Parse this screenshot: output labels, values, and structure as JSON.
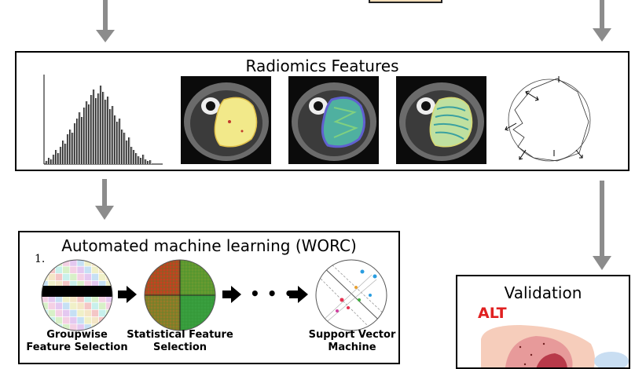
{
  "radiomics": {
    "title": "Radiomics Features"
  },
  "automl": {
    "title": "Automated machine learning (WORC)",
    "step_number": "1.",
    "ellipsis": "• • •",
    "steps": [
      {
        "label": "Groupwise Feature Selection"
      },
      {
        "label": "Statistical Feature Selection"
      },
      {
        "label": "Support Vector Machine"
      }
    ]
  },
  "validation": {
    "title": "Validation",
    "label": "ALT",
    "label_color": "#e02020"
  },
  "colors": {
    "arrow": "#8c8c8c",
    "border": "#000000"
  },
  "icons": [
    "down-arrow-icon",
    "right-arrow-icon",
    "histogram-icon",
    "mri-slice-icon",
    "shape-contour-icon"
  ]
}
